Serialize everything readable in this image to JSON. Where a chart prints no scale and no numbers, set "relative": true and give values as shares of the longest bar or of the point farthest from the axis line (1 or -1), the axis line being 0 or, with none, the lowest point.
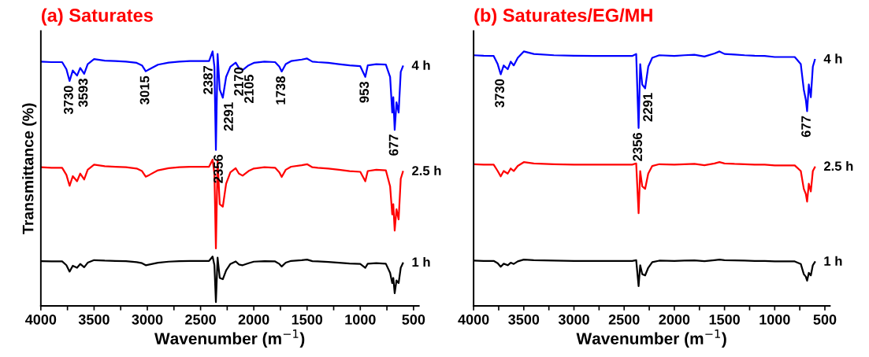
{
  "chart_data": [
    {
      "type": "line",
      "title": "(a) Saturates",
      "xlabel": "Wavenumber (m$^{−1}$)",
      "ylabel": "Transmittance (%)",
      "relative": true,
      "tick_labels": "x",
      "grid": false,
      "legend": false,
      "x": [
        4000,
        3900,
        3800,
        3760,
        3730,
        3700,
        3660,
        3630,
        3593,
        3560,
        3500,
        3400,
        3300,
        3200,
        3100,
        3050,
        3015,
        2980,
        2900,
        2800,
        2700,
        2600,
        2500,
        2420,
        2387,
        2370,
        2356,
        2340,
        2320,
        2291,
        2260,
        2220,
        2170,
        2140,
        2105,
        2050,
        2000,
        1900,
        1800,
        1760,
        1738,
        1700,
        1650,
        1550,
        1500,
        1450,
        1400,
        1300,
        1200,
        1100,
        1000,
        953,
        930,
        850,
        760,
        720,
        700,
        690,
        677,
        660,
        640,
        620,
        600
      ],
      "xlim": [
        4000,
        450
      ],
      "xticks": [
        4000,
        {
          "value": 3750,
          "label": null
        },
        3500,
        {
          "value": 3250,
          "label": null
        },
        3000,
        {
          "value": 2750,
          "label": null
        },
        2500,
        {
          "value": 2250,
          "label": null
        },
        2000,
        {
          "value": 1750,
          "label": null
        },
        1500,
        {
          "value": 1250,
          "label": null
        },
        1000,
        {
          "value": 750,
          "label": null
        },
        500
      ],
      "series": [
        {
          "name": "4 h",
          "color": "#0000ff",
          "values": [
            0.96,
            0.958,
            0.958,
            0.93,
            0.884,
            0.925,
            0.905,
            0.935,
            0.912,
            0.95,
            0.97,
            0.964,
            0.962,
            0.96,
            0.955,
            0.945,
            0.922,
            0.93,
            0.948,
            0.956,
            0.96,
            0.962,
            0.962,
            0.962,
            1.0,
            0.94,
            0.613,
            0.99,
            0.85,
            0.818,
            0.9,
            0.94,
            0.956,
            0.935,
            0.927,
            0.945,
            0.955,
            0.96,
            0.958,
            0.94,
            0.921,
            0.95,
            0.962,
            0.968,
            0.972,
            0.96,
            0.958,
            0.955,
            0.95,
            0.945,
            0.942,
            0.9,
            0.945,
            0.95,
            0.948,
            0.9,
            0.76,
            0.82,
            0.692,
            0.8,
            0.76,
            0.92,
            0.941
          ]
        },
        {
          "name": "2.5 h",
          "color": "#ff0000",
          "values": [
            0.545,
            0.543,
            0.543,
            0.515,
            0.472,
            0.51,
            0.49,
            0.52,
            0.497,
            0.535,
            0.555,
            0.549,
            0.547,
            0.545,
            0.54,
            0.53,
            0.508,
            0.515,
            0.533,
            0.541,
            0.545,
            0.547,
            0.547,
            0.547,
            0.575,
            0.52,
            0.226,
            0.57,
            0.4,
            0.39,
            0.48,
            0.525,
            0.541,
            0.52,
            0.512,
            0.53,
            0.54,
            0.545,
            0.543,
            0.525,
            0.507,
            0.535,
            0.547,
            0.553,
            0.557,
            0.545,
            0.543,
            0.54,
            0.535,
            0.53,
            0.527,
            0.49,
            0.53,
            0.535,
            0.533,
            0.47,
            0.36,
            0.4,
            0.296,
            0.38,
            0.34,
            0.5,
            0.527
          ]
        },
        {
          "name": "1 h",
          "color": "#000000",
          "values": [
            0.176,
            0.175,
            0.175,
            0.16,
            0.135,
            0.158,
            0.15,
            0.165,
            0.152,
            0.17,
            0.18,
            0.178,
            0.177,
            0.176,
            0.172,
            0.168,
            0.16,
            0.163,
            0.17,
            0.174,
            0.176,
            0.177,
            0.177,
            0.177,
            0.194,
            0.16,
            0.015,
            0.19,
            0.11,
            0.105,
            0.14,
            0.165,
            0.175,
            0.163,
            0.16,
            0.168,
            0.174,
            0.176,
            0.175,
            0.165,
            0.155,
            0.17,
            0.177,
            0.18,
            0.182,
            0.176,
            0.175,
            0.173,
            0.17,
            0.167,
            0.165,
            0.15,
            0.166,
            0.168,
            0.166,
            0.13,
            0.09,
            0.11,
            0.05,
            0.1,
            0.09,
            0.15,
            0.168
          ]
        }
      ],
      "annotations": [
        {
          "text": "3730",
          "x": 3730,
          "y": 0.884
        },
        {
          "text": "3593",
          "x": 3593,
          "y": 0.912
        },
        {
          "text": "3015",
          "x": 3015,
          "y": 0.922
        },
        {
          "text": "2387",
          "x": 2420,
          "y": 0.962
        },
        {
          "text": "2356",
          "x": 2356,
          "y": 0.613
        },
        {
          "text": "2291",
          "x": 2291,
          "y": 0.818
        },
        {
          "text": "2170",
          "x": 2170,
          "y": 0.956
        },
        {
          "text": "2105",
          "x": 2105,
          "y": 0.927
        },
        {
          "text": "1738",
          "x": 1738,
          "y": 0.921
        },
        {
          "text": "953",
          "x": 953,
          "y": 0.9
        },
        {
          "text": "677",
          "x": 677,
          "y": 0.692
        }
      ]
    },
    {
      "type": "line",
      "title": "(b) Saturates/EG/MH",
      "xlabel": "Wavenumber (m$^{−1}$)",
      "relative": true,
      "tick_labels": "x",
      "grid": false,
      "legend": false,
      "x": [
        4000,
        3900,
        3800,
        3760,
        3730,
        3700,
        3660,
        3630,
        3600,
        3560,
        3500,
        3400,
        3200,
        3000,
        2800,
        2600,
        2420,
        2380,
        2356,
        2340,
        2320,
        2291,
        2260,
        2220,
        2150,
        2000,
        1900,
        1800,
        1700,
        1600,
        1550,
        1500,
        1400,
        1300,
        1200,
        1100,
        1000,
        900,
        800,
        740,
        710,
        690,
        677,
        660,
        640,
        620,
        600
      ],
      "xlim": [
        4000,
        450
      ],
      "xticks": [
        4000,
        {
          "value": 3750,
          "label": null
        },
        3500,
        {
          "value": 3250,
          "label": null
        },
        3000,
        {
          "value": 2750,
          "label": null
        },
        2500,
        {
          "value": 2250,
          "label": null
        },
        2000,
        {
          "value": 1750,
          "label": null
        },
        1500,
        {
          "value": 1250,
          "label": null
        },
        1000,
        {
          "value": 750,
          "label": null
        },
        500
      ],
      "series": [
        {
          "name": "4 h",
          "color": "#0000ff",
          "values": [
            0.985,
            0.983,
            0.982,
            0.95,
            0.91,
            0.945,
            0.93,
            0.96,
            0.945,
            0.975,
            1.0,
            0.99,
            0.985,
            0.983,
            0.982,
            0.982,
            0.982,
            0.99,
            0.699,
            0.95,
            0.87,
            0.855,
            0.94,
            0.975,
            0.985,
            0.982,
            0.985,
            0.987,
            0.98,
            0.992,
            1.0,
            0.99,
            0.988,
            0.985,
            0.983,
            0.982,
            0.978,
            0.978,
            0.978,
            0.95,
            0.85,
            0.81,
            0.765,
            0.87,
            0.82,
            0.94,
            0.967
          ]
        },
        {
          "name": "2.5 h",
          "color": "#ff0000",
          "values": [
            0.557,
            0.555,
            0.555,
            0.53,
            0.509,
            0.53,
            0.52,
            0.54,
            0.53,
            0.55,
            0.565,
            0.56,
            0.557,
            0.555,
            0.555,
            0.555,
            0.555,
            0.56,
            0.364,
            0.53,
            0.47,
            0.46,
            0.52,
            0.55,
            0.557,
            0.555,
            0.557,
            0.558,
            0.553,
            0.56,
            0.565,
            0.56,
            0.558,
            0.557,
            0.555,
            0.555,
            0.552,
            0.552,
            0.552,
            0.53,
            0.46,
            0.44,
            0.41,
            0.48,
            0.45,
            0.53,
            0.545
          ]
        },
        {
          "name": "1 h",
          "color": "#000000",
          "values": [
            0.178,
            0.177,
            0.177,
            0.168,
            0.154,
            0.166,
            0.16,
            0.17,
            0.165,
            0.175,
            0.182,
            0.18,
            0.178,
            0.177,
            0.177,
            0.177,
            0.177,
            0.18,
            0.078,
            0.16,
            0.125,
            0.12,
            0.15,
            0.172,
            0.178,
            0.177,
            0.178,
            0.179,
            0.176,
            0.18,
            0.182,
            0.18,
            0.179,
            0.178,
            0.177,
            0.177,
            0.175,
            0.175,
            0.175,
            0.165,
            0.125,
            0.115,
            0.099,
            0.13,
            0.12,
            0.16,
            0.172
          ]
        }
      ],
      "annotations": [
        {
          "text": "3730",
          "x": 3730,
          "y": 0.91
        },
        {
          "text": "2356",
          "x": 2356,
          "y": 0.699
        },
        {
          "text": "2291",
          "x": 2291,
          "y": 0.855
        },
        {
          "text": "677",
          "x": 677,
          "y": 0.765
        }
      ]
    }
  ]
}
